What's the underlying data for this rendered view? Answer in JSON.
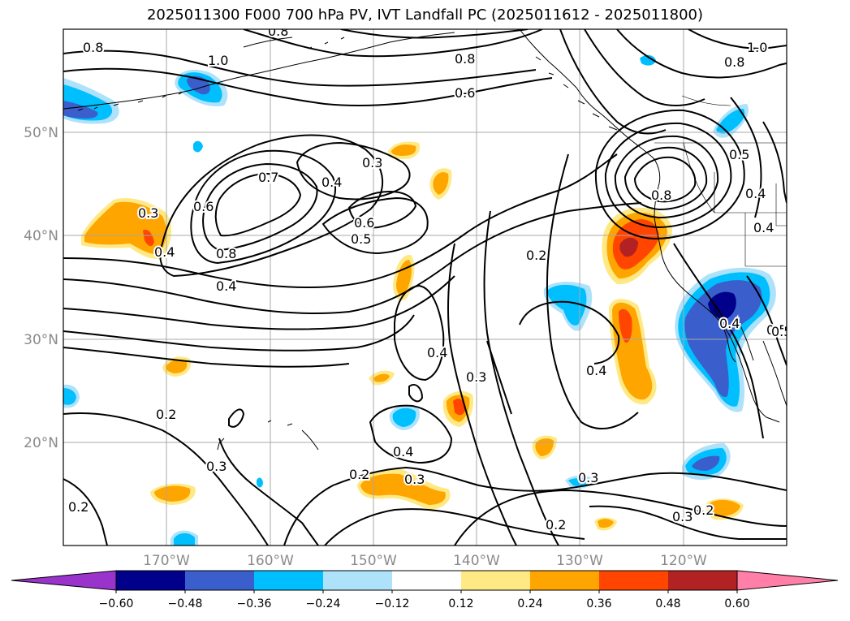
{
  "title": "2025011300 F000 700 hPa PV, IVT Landfall PC (2025011612 - 2025011800)",
  "map": {
    "projection": "PlateCarree",
    "lon_range": [
      -180,
      -110
    ],
    "lat_range": [
      10,
      60
    ],
    "gridlines": true,
    "lat_labels": [
      "50°N",
      "40°N",
      "30°N",
      "20°N"
    ],
    "lon_labels": [
      "170°W",
      "160°W",
      "150°W",
      "140°W",
      "130°W",
      "120°W"
    ],
    "contour_labels": [
      "0.8",
      "0.8",
      "1.0",
      "0.8",
      "0.6",
      "0.8",
      "1.0",
      "0.3",
      "0.4",
      "0.7",
      "0.6",
      "0.8",
      "0.6",
      "0.5",
      "0.4",
      "0.3",
      "0.4",
      "0.2",
      "0.8",
      "0.5",
      "0.4",
      "0.5",
      "0.4",
      "0.3",
      "0.4",
      "0.2",
      "0.2",
      "0.2",
      "0.4",
      "0.3",
      "0.3",
      "0.4",
      "0.3",
      "0.2",
      "0.3",
      "0.2",
      "0.5",
      "0.4"
    ]
  },
  "colorbar": {
    "ticks": [
      "−0.60",
      "−0.48",
      "−0.36",
      "−0.24",
      "−0.12",
      "0.12",
      "0.24",
      "0.36",
      "0.48",
      "0.60"
    ],
    "colors": [
      "#9933cc",
      "#00008b",
      "#3a5fcd",
      "#00bfff",
      "#aee2fb",
      "#ffffff",
      "#ffe985",
      "#ffa500",
      "#ff4500",
      "#b22222",
      "#ff7fa8"
    ],
    "extend": "both"
  }
}
